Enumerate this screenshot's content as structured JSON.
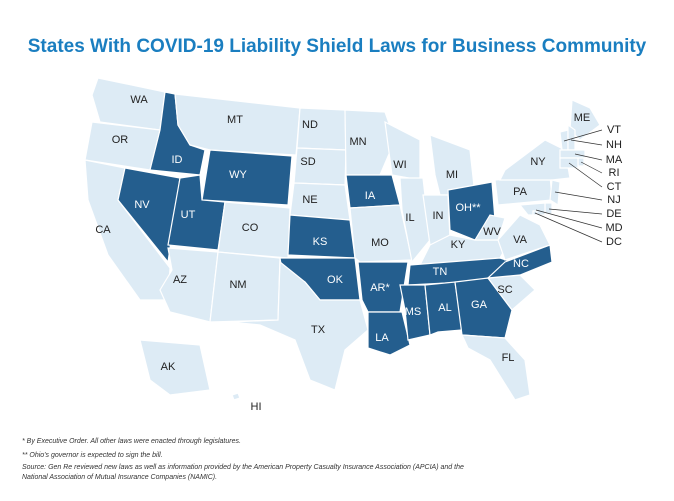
{
  "title": "States With COVID-19 Liability Shield Laws for Business Community",
  "states": [
    {
      "label": "WA",
      "color": "#ddebf5"
    },
    {
      "label": "OR",
      "color": "#ddebf5"
    },
    {
      "label": "CA",
      "color": "#ddebf5"
    },
    {
      "label": "ID",
      "color": "#245e8e"
    },
    {
      "label": "NV",
      "color": "#245e8e"
    },
    {
      "label": "MT",
      "color": "#ddebf5"
    },
    {
      "label": "WY",
      "color": "#245e8e"
    },
    {
      "label": "UT",
      "color": "#245e8e"
    },
    {
      "label": "CO",
      "color": "#ddebf5"
    },
    {
      "label": "AZ",
      "color": "#ddebf5"
    },
    {
      "label": "NM",
      "color": "#ddebf5"
    },
    {
      "label": "ND",
      "color": "#ddebf5"
    },
    {
      "label": "SD",
      "color": "#ddebf5"
    },
    {
      "label": "NE",
      "color": "#ddebf5"
    },
    {
      "label": "KS",
      "color": "#245e8e"
    },
    {
      "label": "OK",
      "color": "#245e8e"
    },
    {
      "label": "TX",
      "color": "#ddebf5"
    },
    {
      "label": "MN",
      "color": "#ddebf5"
    },
    {
      "label": "IA",
      "color": "#245e8e"
    },
    {
      "label": "MO",
      "color": "#ddebf5"
    },
    {
      "label": "AR*",
      "color": "#245e8e"
    },
    {
      "label": "LA",
      "color": "#245e8e"
    },
    {
      "label": "WI",
      "color": "#ddebf5"
    },
    {
      "label": "IL",
      "color": "#ddebf5"
    },
    {
      "label": "MI",
      "color": "#ddebf5"
    },
    {
      "label": "IN",
      "color": "#ddebf5"
    },
    {
      "label": "OH**",
      "color": "#245e8e"
    },
    {
      "label": "KY",
      "color": "#ddebf5"
    },
    {
      "label": "TN",
      "color": "#245e8e"
    },
    {
      "label": "MS",
      "color": "#245e8e"
    },
    {
      "label": "AL",
      "color": "#245e8e"
    },
    {
      "label": "GA",
      "color": "#245e8e"
    },
    {
      "label": "FL",
      "color": "#ddebf5"
    },
    {
      "label": "SC",
      "color": "#ddebf5"
    },
    {
      "label": "NC",
      "color": "#245e8e"
    },
    {
      "label": "VA",
      "color": "#ddebf5"
    },
    {
      "label": "WV",
      "color": "#ddebf5"
    },
    {
      "label": "PA",
      "color": "#ddebf5"
    },
    {
      "label": "NY",
      "color": "#ddebf5"
    },
    {
      "label": "ME",
      "color": "#ddebf5"
    },
    {
      "label": "VT",
      "color": "#ddebf5"
    },
    {
      "label": "NH",
      "color": "#ddebf5"
    },
    {
      "label": "MA",
      "color": "#ddebf5"
    },
    {
      "label": "RI",
      "color": "#ddebf5"
    },
    {
      "label": "CT",
      "color": "#ddebf5"
    },
    {
      "label": "NJ",
      "color": "#ddebf5"
    },
    {
      "label": "DE",
      "color": "#ddebf5"
    },
    {
      "label": "MD",
      "color": "#ddebf5"
    },
    {
      "label": "DC",
      "color": "#ddebf5"
    },
    {
      "label": "AK",
      "color": "#ddebf5"
    },
    {
      "label": "HI",
      "color": "#ddebf5"
    }
  ],
  "notes": [
    "* By Executive Order. All other laws were enacted through legislatures.",
    "** Ohio's governor is expected to sign the bill.",
    "Source: Gen Re reviewed new laws as well as information provided by the American Property Casualty Insurance Association (APCIA) and the",
    "National Association of Mutual Insurance Companies (NAMIC)."
  ]
}
